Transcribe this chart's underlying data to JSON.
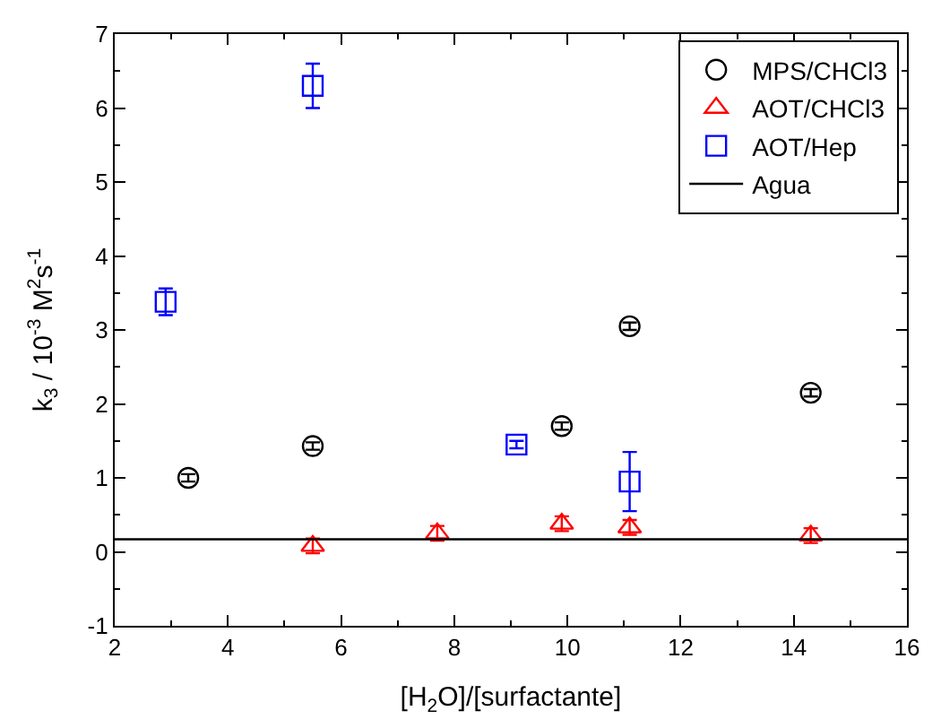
{
  "chart_data": {
    "type": "scatter",
    "xlabel": "[H$_{2}$O]/[surfactante]",
    "ylabel": "k$_{3}$ / 10$^{-3}$ M$^{2}$s$^{-1}$",
    "xlim": [
      2,
      16
    ],
    "ylim": [
      -1,
      7
    ],
    "xticks": [
      2,
      4,
      6,
      8,
      10,
      12,
      14,
      16
    ],
    "yticks": [
      -1,
      0,
      1,
      2,
      3,
      4,
      5,
      6,
      7
    ],
    "legend": "top right",
    "series": [
      {
        "name": "MPS/CHCl3",
        "color": "#000000",
        "marker": "circle",
        "x": [
          3.3,
          5.5,
          9.9,
          11.1,
          14.3
        ],
        "values": [
          1.0,
          1.43,
          1.7,
          3.05,
          2.15
        ],
        "errors": [
          0.05,
          0.05,
          0.05,
          0.05,
          0.05
        ]
      },
      {
        "name": "AOT/CHCl3",
        "color": "#ff0000",
        "marker": "triangle",
        "x": [
          5.5,
          7.7,
          9.9,
          11.1,
          14.3
        ],
        "values": [
          0.08,
          0.25,
          0.38,
          0.33,
          0.22
        ],
        "errors": [
          0.1,
          0.1,
          0.1,
          0.1,
          0.1
        ]
      },
      {
        "name": "AOT/Hep",
        "color": "#0000ff",
        "marker": "square",
        "x": [
          2.9,
          5.5,
          9.1,
          11.1
        ],
        "values": [
          3.38,
          6.3,
          1.45,
          0.95
        ],
        "errors": [
          0.18,
          0.3,
          0.05,
          0.4
        ]
      },
      {
        "name": "Agua",
        "type": "line",
        "color": "#000000",
        "marker": "none",
        "line_style": "solid",
        "x": [
          2,
          16
        ],
        "values": [
          0.17,
          0.17
        ]
      }
    ]
  }
}
